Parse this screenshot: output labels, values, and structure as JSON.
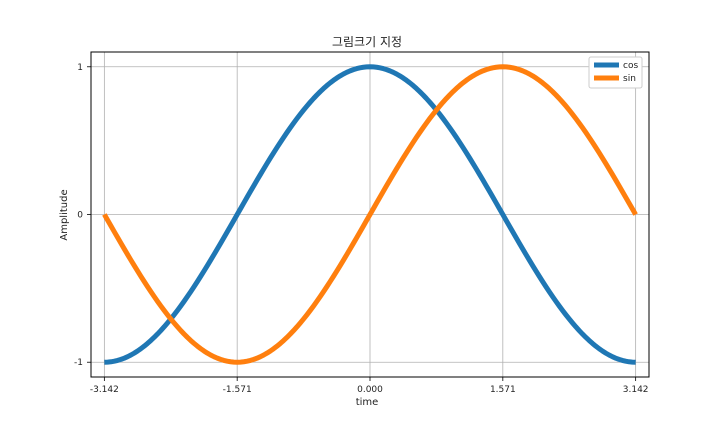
{
  "chart_data": {
    "type": "line",
    "title": "그림크기 지정",
    "xlabel": "time",
    "ylabel": "Amplitude",
    "xlim": [
      -3.3,
      3.3
    ],
    "ylim": [
      -1.1,
      1.1
    ],
    "grid": true,
    "legend_position": "top-right",
    "x_ticks": [
      -3.142,
      -1.571,
      0.0,
      1.571,
      3.142
    ],
    "x_tick_labels": [
      "-3.142",
      "-1.571",
      "0.000",
      "1.571",
      "3.142"
    ],
    "y_ticks": [
      -1,
      0,
      1
    ],
    "y_tick_labels": [
      "-1",
      "0",
      "1"
    ],
    "x": [
      -3.142,
      -2.827,
      -2.513,
      -2.199,
      -1.885,
      -1.571,
      -1.257,
      -0.942,
      -0.628,
      -0.314,
      0.0,
      0.314,
      0.628,
      0.942,
      1.257,
      1.571,
      1.885,
      2.199,
      2.513,
      2.827,
      3.142
    ],
    "series": [
      {
        "name": "cos",
        "color": "#1f77b4",
        "values": [
          -1.0,
          -0.951,
          -0.809,
          -0.588,
          -0.309,
          0.0,
          0.309,
          0.588,
          0.809,
          0.951,
          1.0,
          0.951,
          0.809,
          0.588,
          0.309,
          0.0,
          -0.309,
          -0.588,
          -0.809,
          -0.951,
          -1.0
        ]
      },
      {
        "name": "sin",
        "color": "#ff7f0e",
        "values": [
          0.0,
          -0.309,
          -0.588,
          -0.809,
          -0.951,
          -1.0,
          -0.951,
          -0.809,
          -0.588,
          -0.309,
          0.0,
          0.309,
          0.588,
          0.809,
          0.951,
          1.0,
          0.951,
          0.809,
          0.588,
          0.309,
          0.0
        ]
      }
    ]
  }
}
